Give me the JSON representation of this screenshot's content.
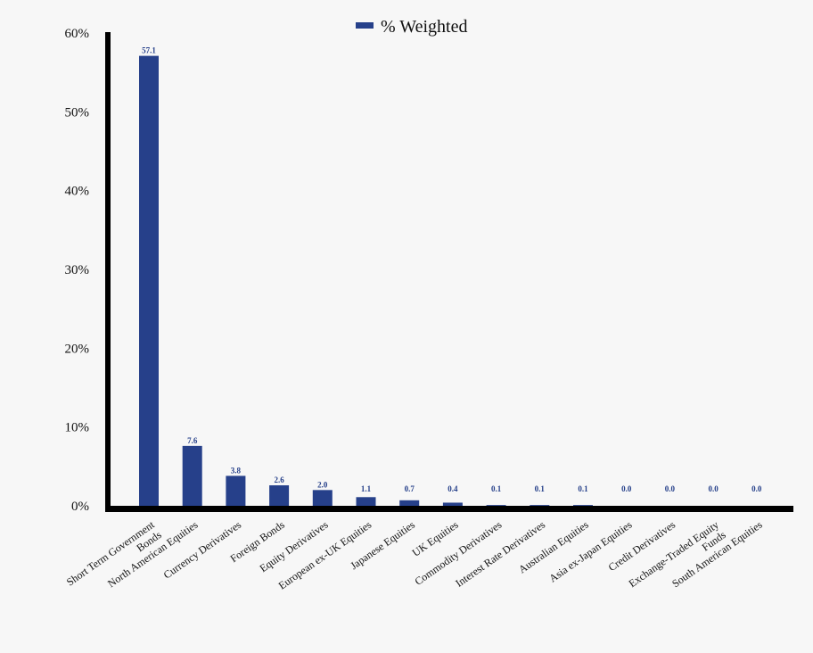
{
  "chart_data": {
    "type": "bar",
    "categories": [
      [
        "Short Term Government",
        "Bonds"
      ],
      [
        "North American Equities"
      ],
      [
        "Currency Derivatives"
      ],
      [
        "Foreign Bonds"
      ],
      [
        "Equity Derivatives"
      ],
      [
        "European ex-UK Equities"
      ],
      [
        "Japanese Equities"
      ],
      [
        "UK Equities"
      ],
      [
        "Commodity Derivatives"
      ],
      [
        "Interest Rate Derivatives"
      ],
      [
        "Australian Equities"
      ],
      [
        "Asia ex-Japan Equities"
      ],
      [
        "Credit Derivatives"
      ],
      [
        "Exchange-Traded Equity",
        "Funds"
      ],
      [
        "South American Equities"
      ]
    ],
    "series": [
      {
        "name": "% Weighted",
        "color": "#26408a",
        "values": [
          57.1,
          7.6,
          3.8,
          2.6,
          2.0,
          1.1,
          0.7,
          0.4,
          0.1,
          0.1,
          0.1,
          0.0,
          0.0,
          0.0,
          0.0
        ],
        "value_labels": [
          "57.1",
          "7.6",
          "3.8",
          "2.6",
          "2.0",
          "1.1",
          "0.7",
          "0.4",
          "0.1",
          "0.1",
          "0.1",
          "0.0",
          "0.0",
          "0.0",
          "0.0"
        ]
      }
    ],
    "ylim": [
      0,
      60
    ],
    "yticks": [
      0,
      10,
      20,
      30,
      40,
      50,
      60
    ],
    "ytick_labels": [
      "0%",
      "10%",
      "20%",
      "30%",
      "40%",
      "50%",
      "60%"
    ],
    "legend_placement": "top-center",
    "grid": false
  }
}
